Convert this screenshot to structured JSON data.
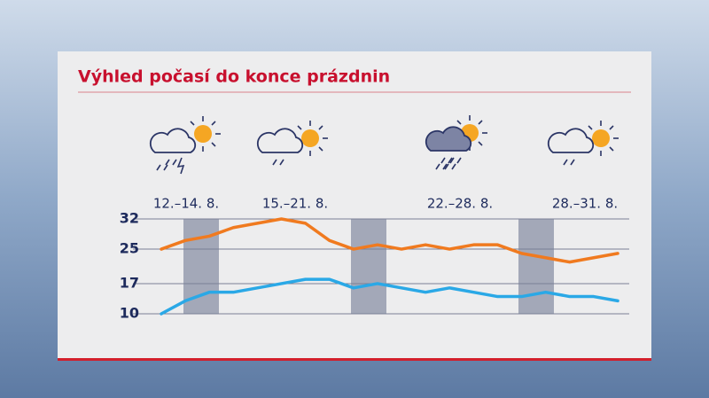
{
  "chart_data": {
    "type": "line",
    "title": "Výhled počasí do konce prázdnin",
    "categories": [
      null,
      null,
      null,
      null,
      null,
      null,
      null,
      null,
      null,
      null,
      null,
      null,
      null,
      null,
      null,
      null,
      null,
      null,
      null,
      null
    ],
    "series": [
      {
        "color": "#f07a1f",
        "values": [
          25,
          27,
          28,
          30,
          31,
          32,
          31,
          27,
          25,
          26,
          25,
          26,
          25,
          26,
          26,
          24,
          23,
          22,
          23,
          24
        ]
      },
      {
        "color": "#2aa8e6",
        "values": [
          10,
          13,
          15,
          15,
          16,
          17,
          18,
          18,
          16,
          17,
          16,
          15,
          16,
          15,
          14,
          14,
          15,
          14,
          14,
          13
        ]
      }
    ],
    "ylim": [
      10,
      32
    ],
    "yticks": [
      10,
      17,
      25,
      32
    ],
    "grid": true,
    "annotations": [
      "12.–14. 8.",
      "15.–21. 8.",
      "22.–28. 8.",
      "28.–31. 8."
    ]
  }
}
